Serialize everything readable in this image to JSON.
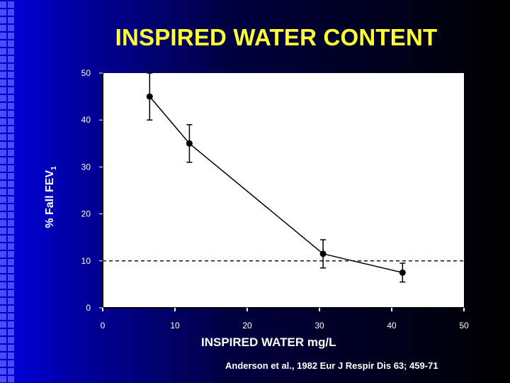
{
  "title": "INSPIRED WATER CONTENT",
  "ylabel_main": "% Fall FEV",
  "ylabel_sub": "1",
  "xlabel": "INSPIRED WATER mg/L",
  "citation": "Anderson et al., 1982 Eur J Respir Dis 63; 459-71",
  "colors": {
    "title": "#ffff33",
    "text": "#ffffff",
    "plot_bg": "#ffffff",
    "series": "#000000"
  },
  "chart_data": {
    "type": "line",
    "title": "INSPIRED WATER CONTENT",
    "xlabel": "INSPIRED WATER mg/L",
    "ylabel": "% Fall FEV1",
    "xlim": [
      0,
      50
    ],
    "ylim": [
      0,
      50
    ],
    "x_ticks": [
      "0",
      "10",
      "20",
      "30",
      "40",
      "50"
    ],
    "y_ticks": [
      "0",
      "10",
      "20",
      "30",
      "40",
      "50"
    ],
    "grid": false,
    "reference_line": {
      "y": 10,
      "style": "dashed"
    },
    "series": [
      {
        "x": [
          6.5,
          12,
          30.5,
          41.5
        ],
        "y": [
          45,
          35,
          11.5,
          7.5
        ],
        "error_low": [
          40,
          31,
          8.5,
          5.5
        ],
        "error_high": [
          50,
          39,
          14.5,
          9.5
        ]
      }
    ]
  }
}
